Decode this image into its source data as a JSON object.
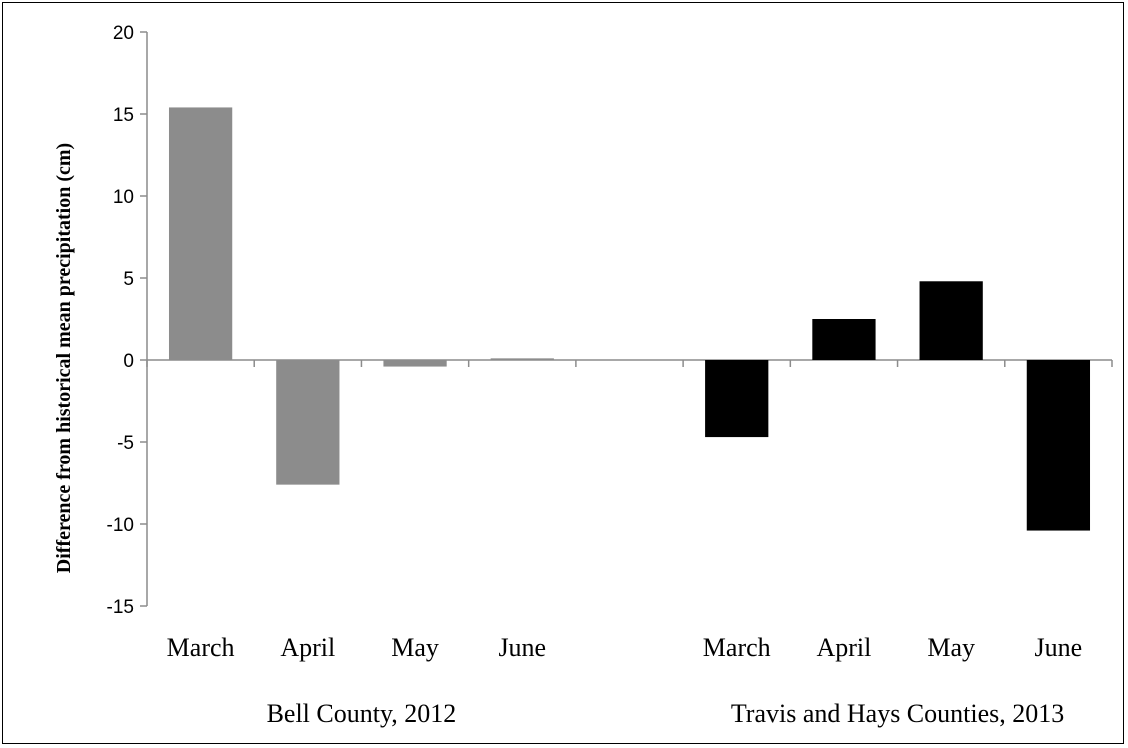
{
  "chart_data": {
    "type": "bar",
    "title": "",
    "xlabel": "",
    "ylabel": "Difference from historical mean precipitation (cm)",
    "ylim": [
      -15,
      20
    ],
    "yticks": [
      20,
      15,
      10,
      5,
      0,
      -5,
      -10,
      -15
    ],
    "legend": "none",
    "grid": false,
    "groups": [
      {
        "name": "Bell County, 2012",
        "color": "#8c8c8c",
        "categories": [
          "March",
          "April",
          "May",
          "June"
        ],
        "values": [
          15.4,
          -7.6,
          -0.4,
          0.1
        ]
      },
      {
        "name": "Travis and Hays Counties, 2013",
        "color": "#000000",
        "categories": [
          "March",
          "April",
          "May",
          "June"
        ],
        "values": [
          -4.7,
          2.5,
          4.8,
          -10.4
        ]
      }
    ]
  }
}
